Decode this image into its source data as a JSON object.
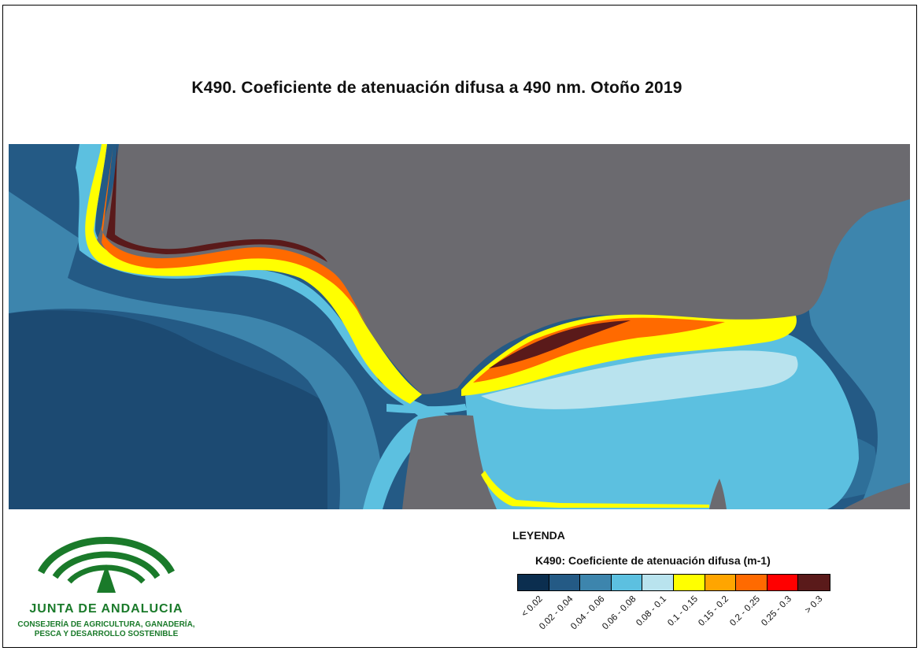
{
  "title": "K490. Coeficiente de atenuación difusa a 490 nm. Otoño 2019",
  "map": {
    "land_color": "#6b6a6f",
    "sea_base_color": "#1f4e75"
  },
  "legend": {
    "heading": "LEYENDA",
    "title": "K490: Coeficiente de atenuación difusa (m-1)",
    "classes": [
      {
        "label": "< 0.02",
        "color": "#0b2e4f"
      },
      {
        "label": "0.02 - 0.04",
        "color": "#245a85"
      },
      {
        "label": "0.04 - 0.06",
        "color": "#3d85ad"
      },
      {
        "label": "0.06 - 0.08",
        "color": "#5cc0e0"
      },
      {
        "label": "0.08 - 0.1",
        "color": "#b9e3ee"
      },
      {
        "label": "0.1 - 0.15",
        "color": "#ffff00"
      },
      {
        "label": "0.15 - 0.2",
        "color": "#ffa500"
      },
      {
        "label": "0.2 - 0.25",
        "color": "#ff6a00"
      },
      {
        "label": "0.25 - 0.3",
        "color": "#ff0000"
      },
      {
        "label": "> 0.3",
        "color": "#5a1a1a"
      }
    ]
  },
  "logo": {
    "name": "JUNTA DE ANDALUCIA",
    "subtitle_line1": "CONSEJERÍA DE AGRICULTURA, GANADERÍA,",
    "subtitle_line2": "PESCA Y DESARROLLO SOSTENIBLE",
    "color": "#1a7a2a"
  }
}
